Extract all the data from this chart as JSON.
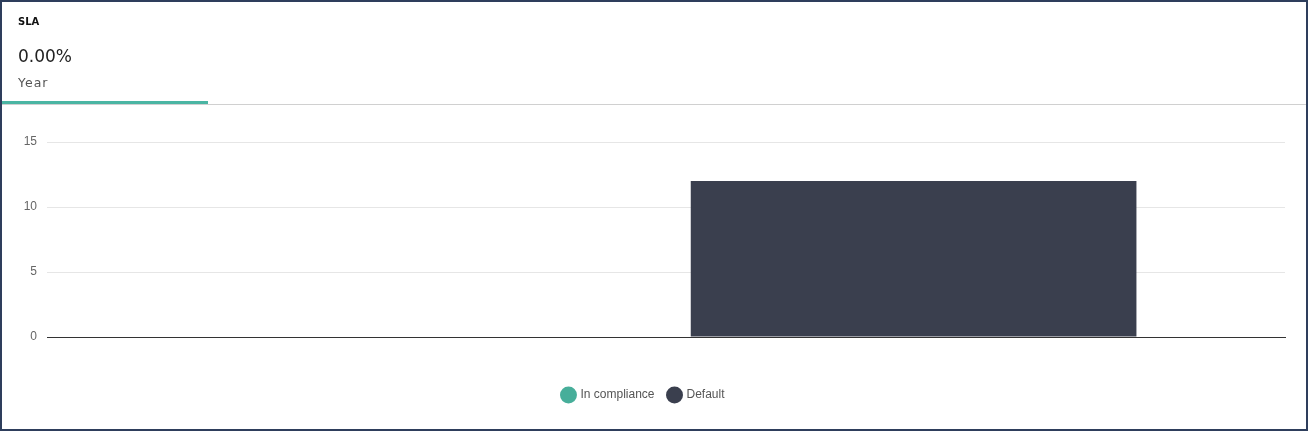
{
  "chart_data": {
    "type": "bar",
    "title": "SLA",
    "subtitle": "0.00%",
    "annotations": [
      "Year"
    ],
    "categories": [
      null
    ],
    "series": [
      {
        "name": "In compliance",
        "color": "#47ae9a",
        "values": [
          0
        ]
      },
      {
        "name": "Default",
        "color": "#3a3f4e",
        "values": [
          12
        ]
      }
    ],
    "ylim": [
      0,
      15
    ],
    "yticks": [
      0,
      5,
      10,
      15
    ],
    "grid": "y",
    "legend": "bottom",
    "tick_labels": "y"
  }
}
